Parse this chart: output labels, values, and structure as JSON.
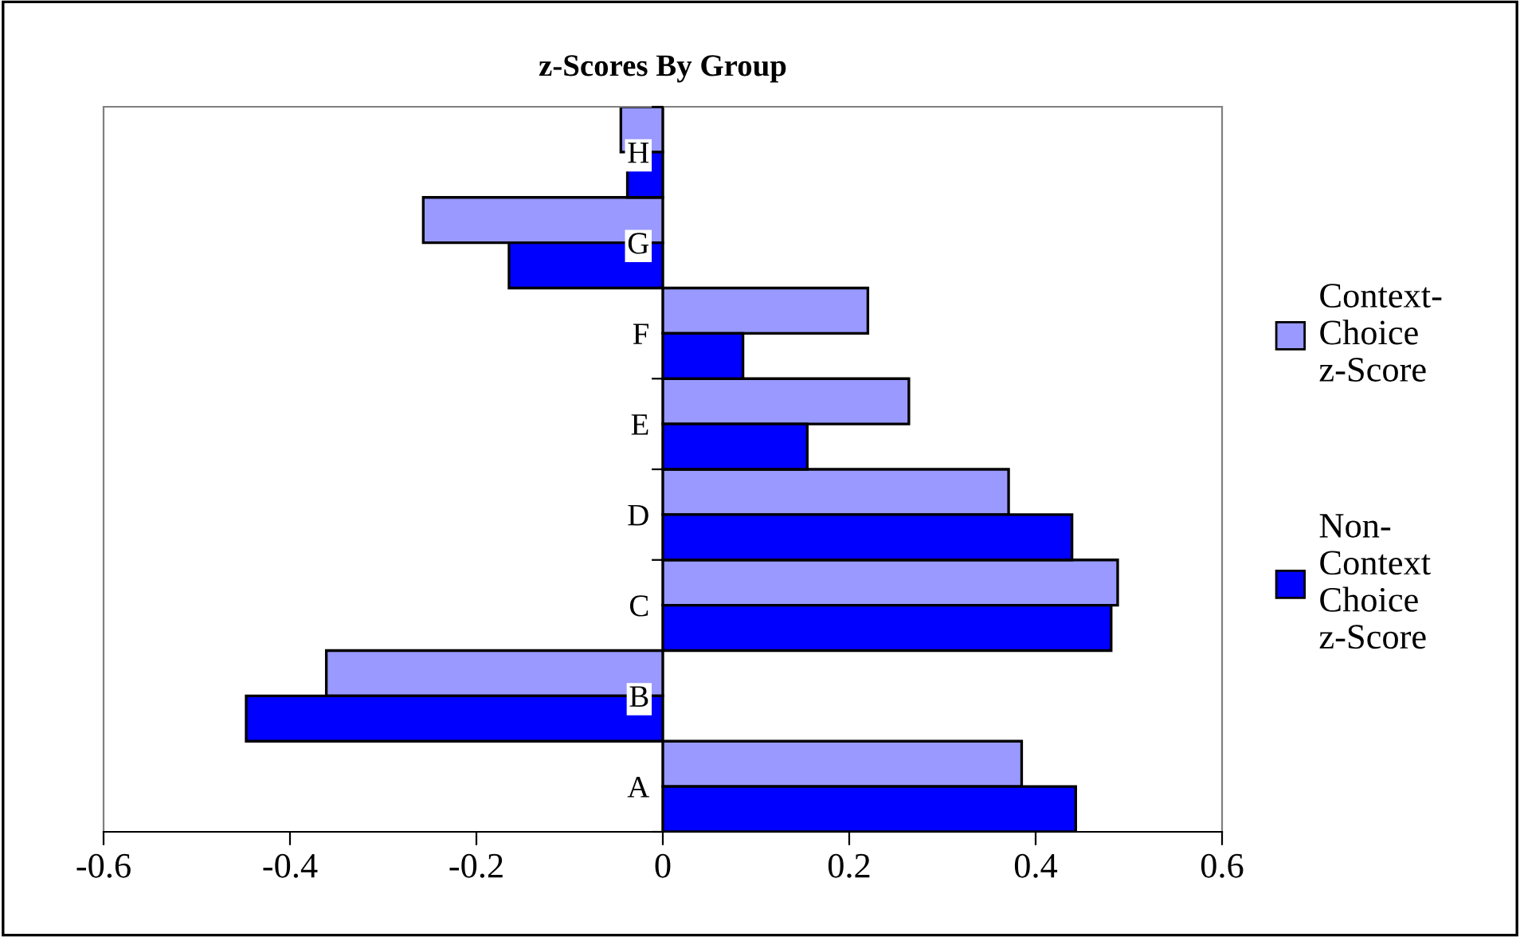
{
  "chart_data": {
    "type": "bar",
    "orientation": "horizontal",
    "title": "z-Scores By Group",
    "categories": [
      "H",
      "G",
      "F",
      "E",
      "D",
      "C",
      "B",
      "A"
    ],
    "series": [
      {
        "name": "Context-Choice z-Score",
        "color": "#9999ff",
        "values": [
          -0.045,
          -0.257,
          0.22,
          0.264,
          0.371,
          0.488,
          -0.361,
          0.385
        ]
      },
      {
        "name": "Non-Context Choice z-Score",
        "color": "#0000ff",
        "values": [
          -0.038,
          -0.165,
          0.086,
          0.155,
          0.439,
          0.481,
          -0.447,
          0.443
        ]
      }
    ],
    "xlim": [
      -0.6,
      0.6
    ],
    "xticks": [
      -0.6,
      -0.4,
      -0.2,
      0,
      0.2,
      0.4,
      0.6
    ],
    "grid": false,
    "legend": "right"
  }
}
